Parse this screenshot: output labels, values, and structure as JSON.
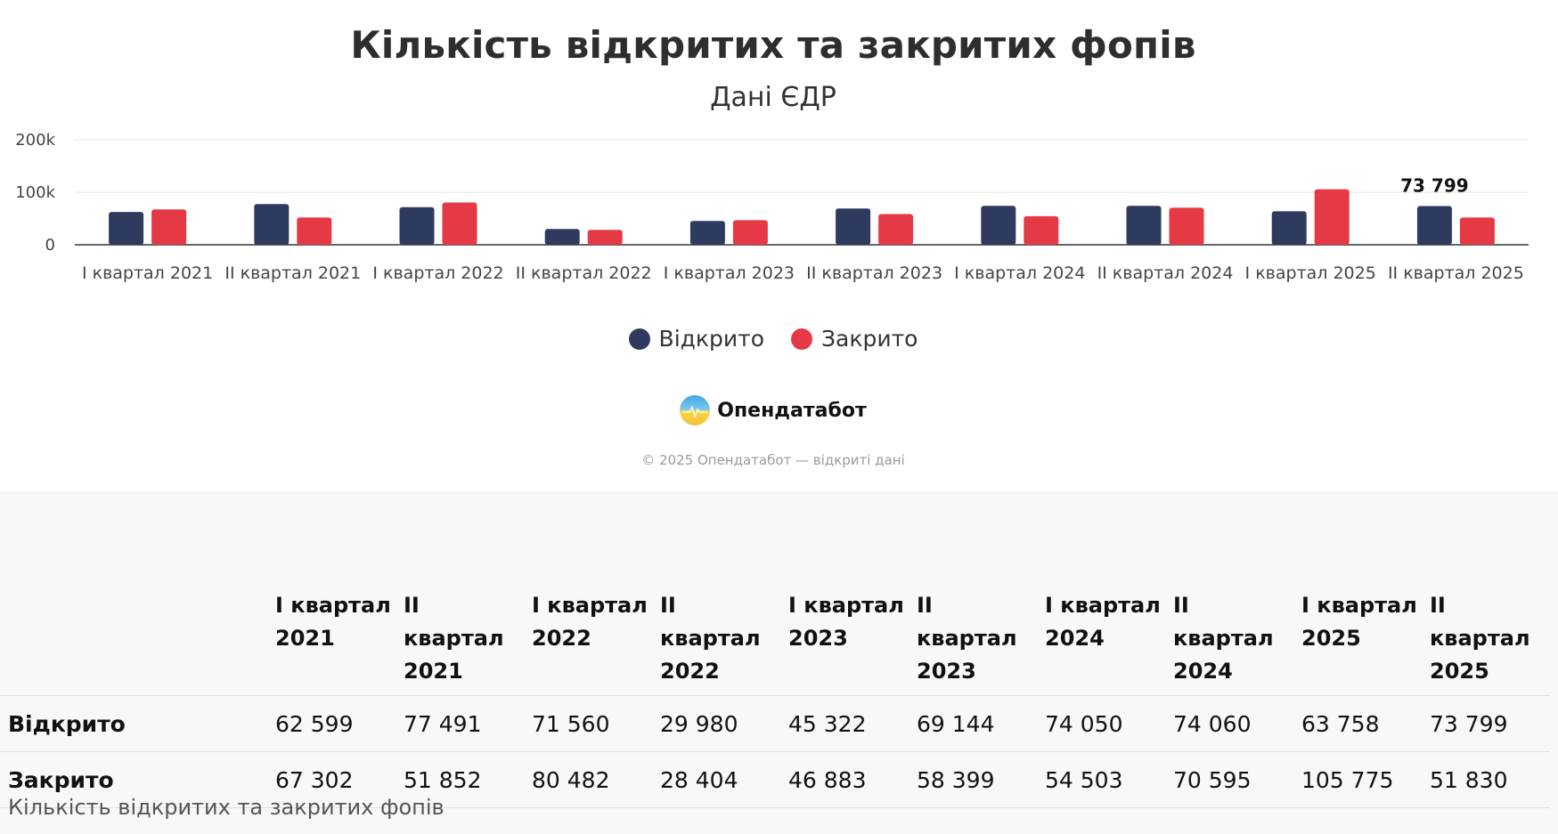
{
  "title": "Кількість відкритих та закритих фопів",
  "subtitle": "Дані ЄДР",
  "legend": [
    {
      "label": "Відкрито",
      "color": "#2e3b5e"
    },
    {
      "label": "Закрито",
      "color": "#e63946"
    }
  ],
  "brand": {
    "name": "Опендатабот",
    "logo_icon": "opendatabot-logo-icon"
  },
  "copyright": "© 2025 Опендатабот — відкриті дані",
  "chart_data": {
    "type": "bar",
    "title": "Кількість відкритих та закритих фопів",
    "subtitle": "Дані ЄДР",
    "categories": [
      "I квартал 2021",
      "II квартал 2021",
      "I квартал 2022",
      "II квартал 2022",
      "I квартал 2023",
      "II квартал 2023",
      "I квартал 2024",
      "II квартал 2024",
      "I квартал 2025",
      "II квартал 2025"
    ],
    "series": [
      {
        "name": "Відкрито",
        "color": "#2e3b5e",
        "values": [
          62599,
          77491,
          71560,
          29980,
          45322,
          69144,
          74050,
          74060,
          63758,
          73799
        ]
      },
      {
        "name": "Закрито",
        "color": "#e63946",
        "values": [
          67302,
          51852,
          80482,
          28404,
          46883,
          58399,
          54503,
          70595,
          105775,
          51830
        ]
      }
    ],
    "yticks": [
      0,
      100000,
      200000
    ],
    "ytick_labels": [
      "0",
      "100k",
      "200k"
    ],
    "ylim": [
      0,
      200000
    ],
    "grid": true,
    "legend_position": "bottom-center",
    "annotations": [
      {
        "category": "II квартал 2025",
        "series": "Відкрито",
        "text": "73 799"
      }
    ]
  },
  "table": {
    "headers": [
      "",
      "I квартал 2021",
      "II квартал 2021",
      "I квартал 2022",
      "II квартал 2022",
      "I квартал 2023",
      "II квартал 2023",
      "I квартал 2024",
      "II квартал 2024",
      "I квартал 2025",
      "II квартал 2025"
    ],
    "rows": [
      {
        "label": "Відкрито",
        "cells": [
          "62 599",
          "77 491",
          "71 560",
          "29 980",
          "45 322",
          "69 144",
          "74 050",
          "74 060",
          "63 758",
          "73 799"
        ]
      },
      {
        "label": "Закрито",
        "cells": [
          "67 302",
          "51 852",
          "80 482",
          "28 404",
          "46 883",
          "58 399",
          "54 503",
          "70 595",
          "105 775",
          "51 830"
        ]
      }
    ],
    "caption": "Кількість відкритих та закритих фопів"
  }
}
